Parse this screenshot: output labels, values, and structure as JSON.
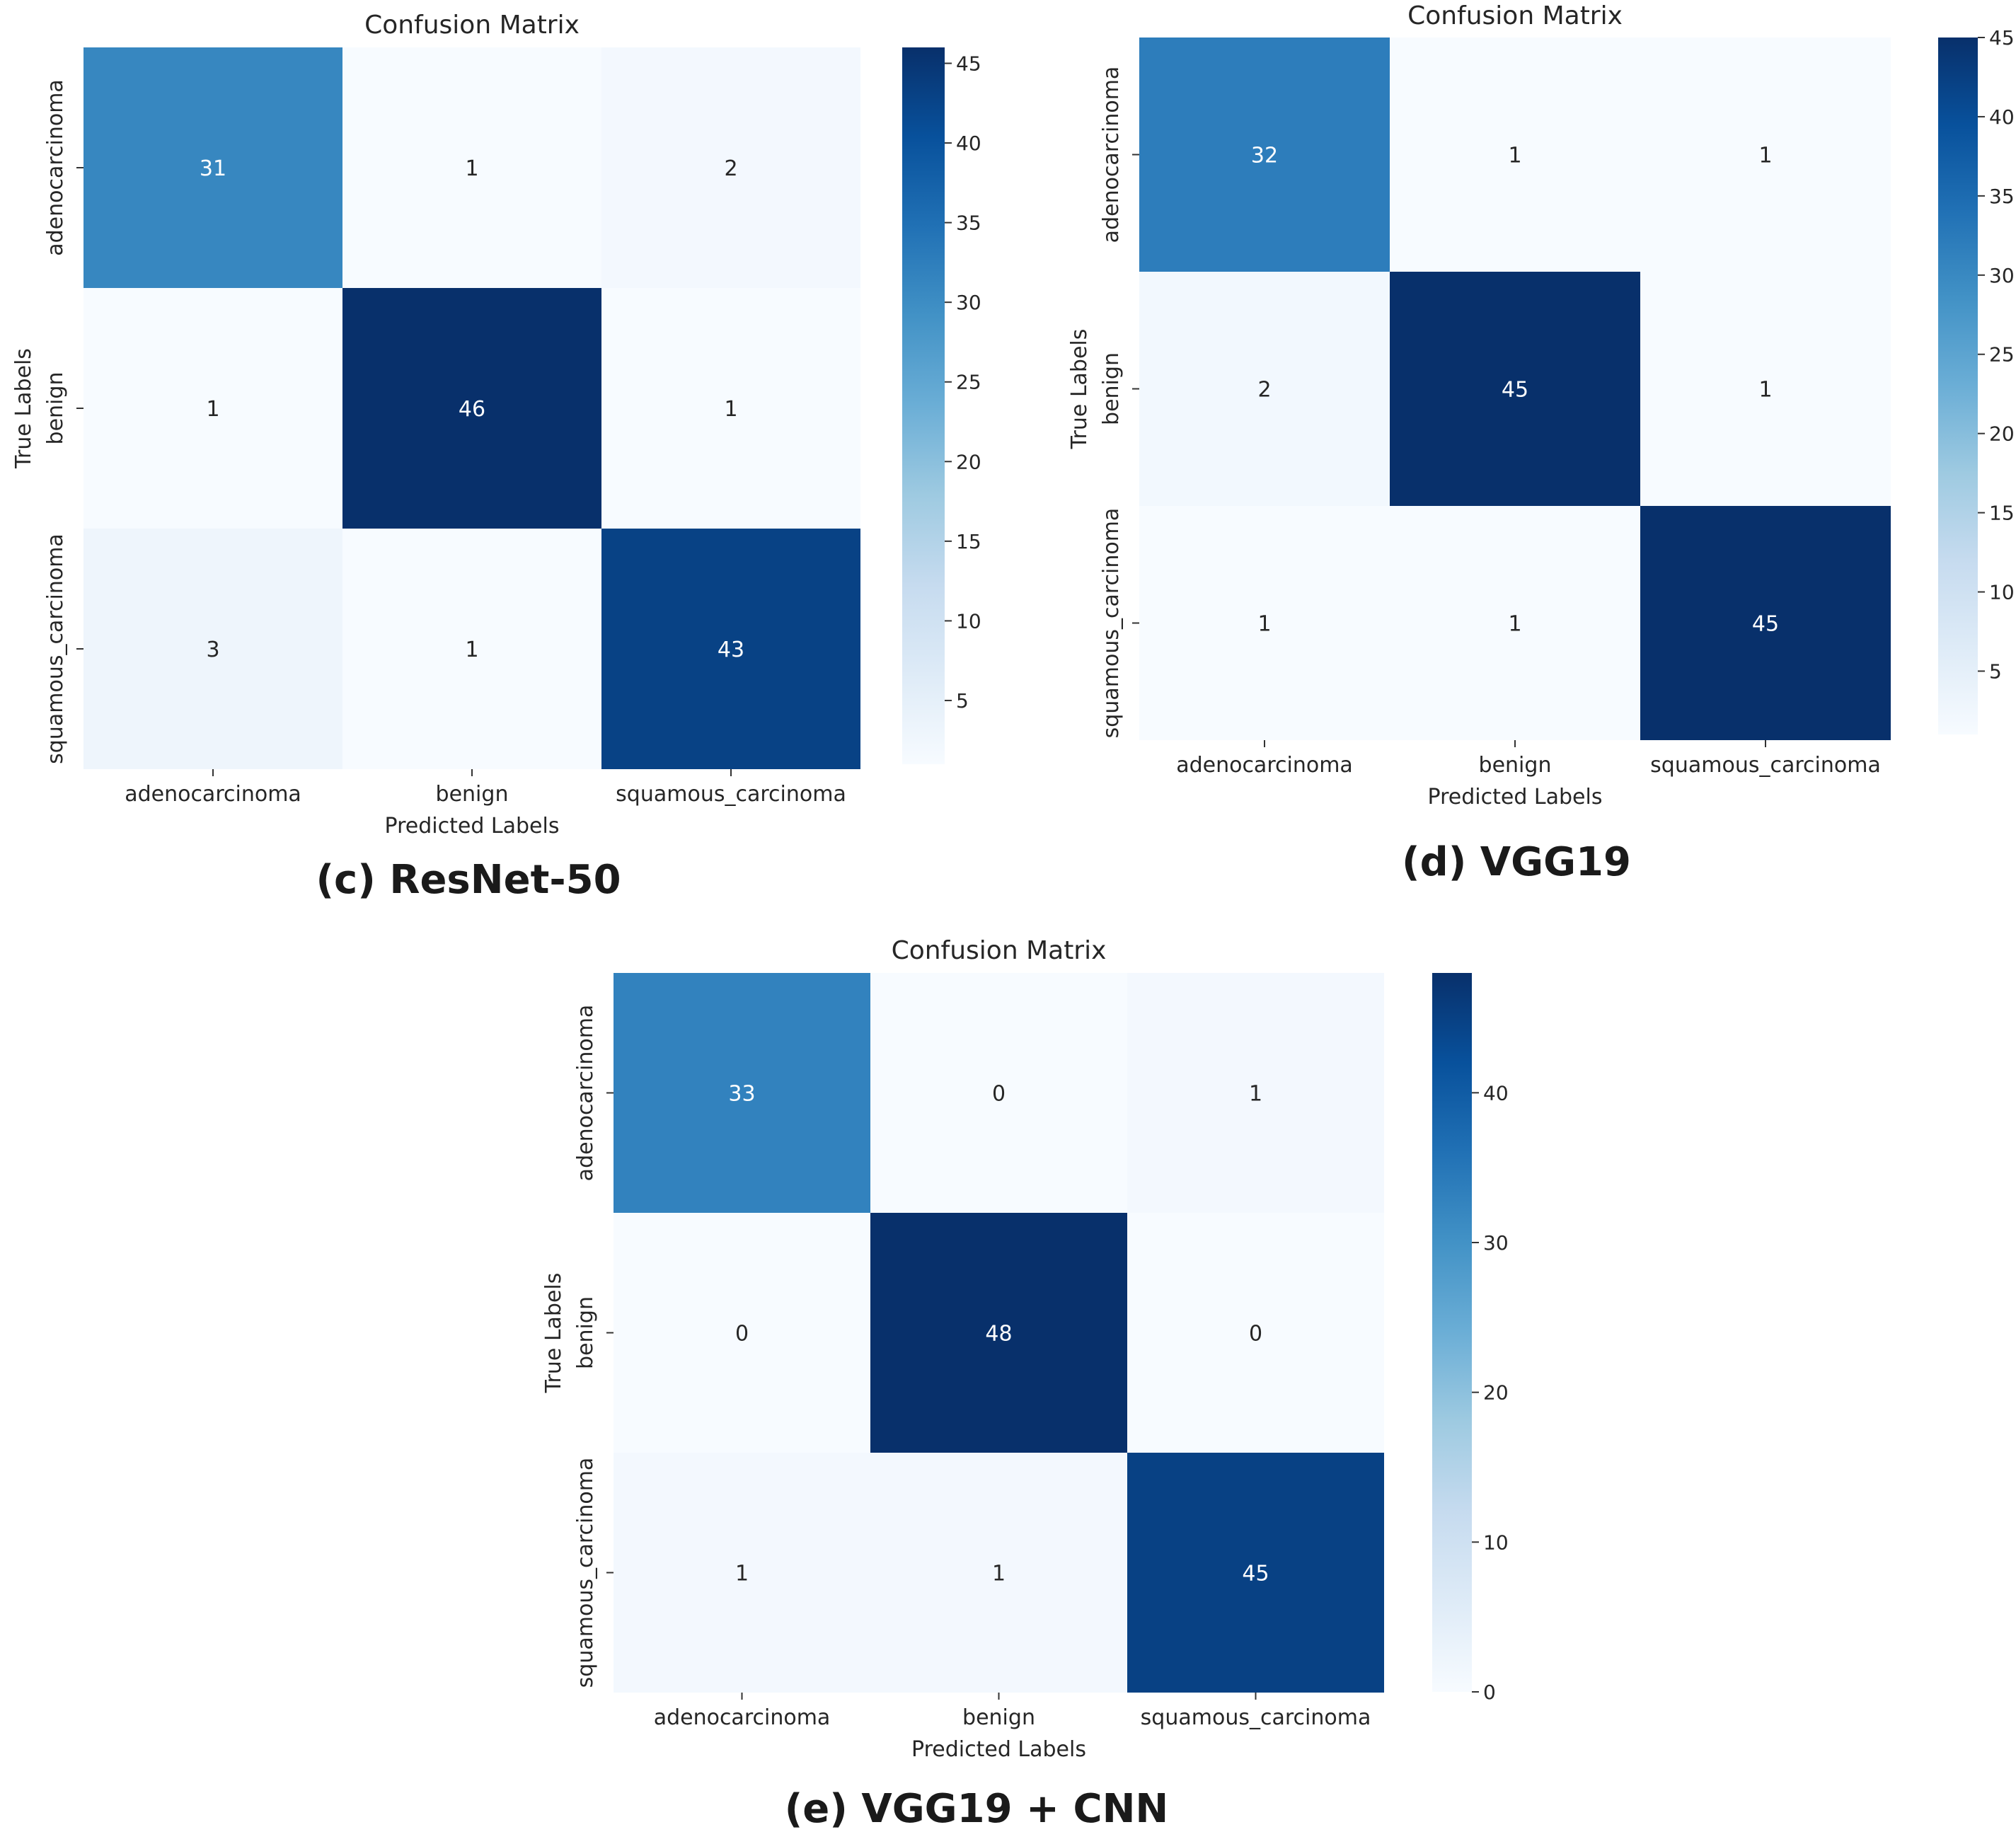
{
  "colors": {
    "scale": [
      "#f7fbff",
      "#deebf7",
      "#c6dbef",
      "#9ecae1",
      "#6baed6",
      "#4292c6",
      "#2171b5",
      "#08519c",
      "#08306b"
    ],
    "text_dark": "#262626",
    "text_light": "#ffffff"
  },
  "chart_data": [
    {
      "type": "heatmap",
      "panel": "c",
      "title": "Confusion Matrix",
      "caption": "(c) ResNet-50",
      "xlabel": "Predicted Labels",
      "ylabel": "True Labels",
      "x_categories": [
        "adenocarcinoma",
        "benign",
        "squamous_carcinoma"
      ],
      "y_categories": [
        "adenocarcinoma",
        "benign",
        "squamous_carcinoma"
      ],
      "values": [
        [
          31,
          1,
          2
        ],
        [
          1,
          46,
          1
        ],
        [
          3,
          1,
          43
        ]
      ],
      "colorbar": {
        "range": [
          1,
          46
        ],
        "ticks": [
          5,
          10,
          15,
          20,
          25,
          30,
          35,
          40,
          45
        ]
      }
    },
    {
      "type": "heatmap",
      "panel": "d",
      "title": "Confusion Matrix",
      "caption": "(d) VGG19",
      "xlabel": "Predicted Labels",
      "ylabel": "True Labels",
      "x_categories": [
        "adenocarcinoma",
        "benign",
        "squamous_carcinoma"
      ],
      "y_categories": [
        "adenocarcinoma",
        "benign",
        "squamous_carcinoma"
      ],
      "values": [
        [
          32,
          1,
          1
        ],
        [
          2,
          45,
          1
        ],
        [
          1,
          1,
          45
        ]
      ],
      "colorbar": {
        "range": [
          1,
          45
        ],
        "ticks": [
          5,
          10,
          15,
          20,
          25,
          30,
          35,
          40,
          45
        ]
      }
    },
    {
      "type": "heatmap",
      "panel": "e",
      "title": "Confusion Matrix",
      "caption": "(e) VGG19  + CNN",
      "xlabel": "Predicted Labels",
      "ylabel": "True Labels",
      "x_categories": [
        "adenocarcinoma",
        "benign",
        "squamous_carcinoma"
      ],
      "y_categories": [
        "adenocarcinoma",
        "benign",
        "squamous_carcinoma"
      ],
      "values": [
        [
          33,
          0,
          1
        ],
        [
          0,
          48,
          0
        ],
        [
          1,
          1,
          45
        ]
      ],
      "colorbar": {
        "range": [
          0,
          48
        ],
        "ticks": [
          0,
          10,
          20,
          30,
          40
        ]
      }
    }
  ]
}
